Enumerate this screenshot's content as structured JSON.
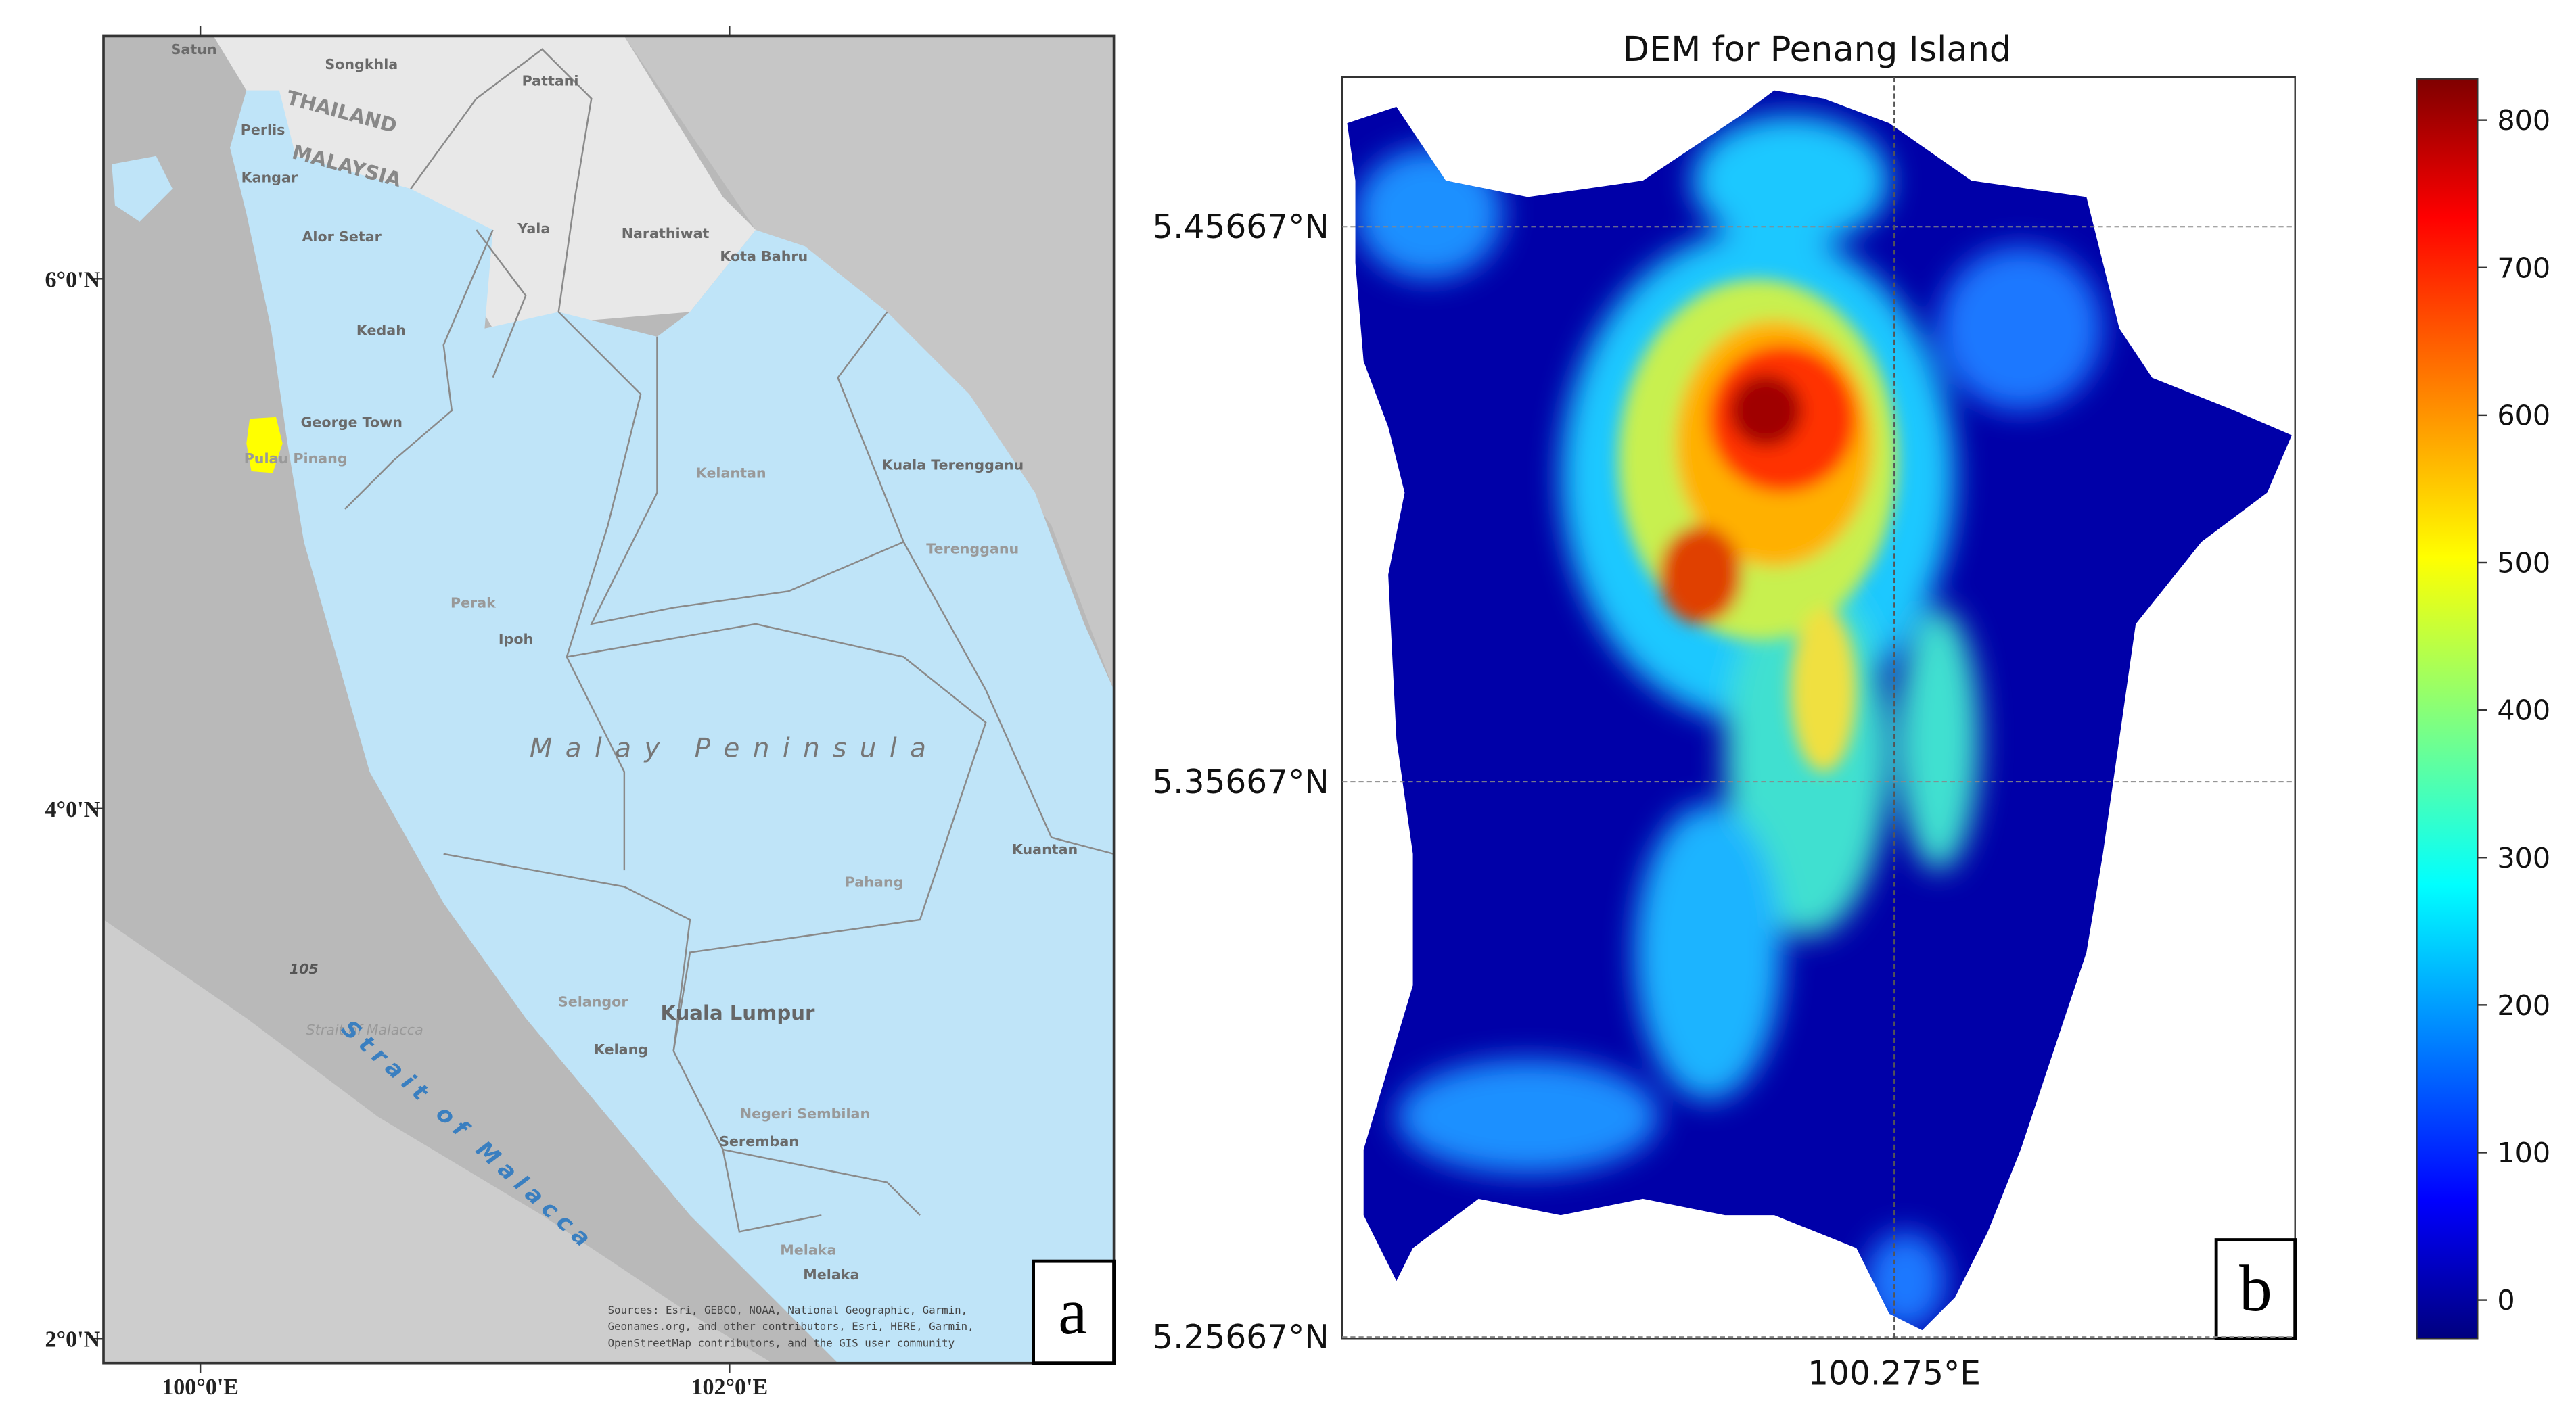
{
  "panel_a": {
    "label": "a",
    "xaxis": {
      "lim": [
        99.634,
        103.453
      ],
      "ticks": [
        {
          "value": 100,
          "label": "100°0'E"
        },
        {
          "value": 102,
          "label": "102°0'E"
        }
      ]
    },
    "yaxis": {
      "lim": [
        1.907,
        6.916
      ],
      "ticks": [
        {
          "value": 2,
          "label": "2°0'N"
        },
        {
          "value": 4,
          "label": "4°0'N"
        },
        {
          "value": 6,
          "label": "6°0'N"
        }
      ]
    },
    "places": [
      "Satun",
      "Songkhla",
      "Pattani",
      "THAILAND",
      "MALAYSIA",
      "Perlis",
      "Kangar",
      "Alor Setar",
      "Kedah",
      "Yala",
      "Narathiwat",
      "Kota Bahru",
      "George Town",
      "Pulau Pinang",
      "Kelantan",
      "Kuala Terengganu",
      "Terengganu",
      "Perak",
      "Ipoh",
      "Malay Peninsula",
      "Kuantan",
      "Pahang",
      "105",
      "Strait of Malacca",
      "Selangor",
      "Kuala Lumpur",
      "Kelang",
      "Negeri Sembilan",
      "Seremban",
      "Melaka",
      "Melaka",
      "Strait of Malacca"
    ],
    "attribution": [
      "Sources: Esri, GEBCO, NOAA, National Geographic, Garmin,",
      "Geonames.org, and other contributors, Esri, HERE, Garmin,",
      "OpenStreetMap contributors, and the GIS user community"
    ]
  },
  "panel_b": {
    "title": "DEM for Penang Island",
    "label": "b",
    "xaxis": {
      "lim": [
        100.1756,
        100.3472
      ],
      "ticks": [
        {
          "value": 100.275,
          "label": "100.275°E"
        }
      ]
    },
    "yaxis": {
      "lim": [
        5.2564,
        5.4836
      ],
      "ticks": [
        {
          "value": 5.25667,
          "label": "5.25667°N"
        },
        {
          "value": 5.35667,
          "label": "5.35667°N"
        },
        {
          "value": 5.45667,
          "label": "5.45667°N"
        }
      ]
    },
    "colorbar": {
      "colormap": "jet",
      "lim": [
        -26,
        828
      ],
      "ticks": [
        0,
        100,
        200,
        300,
        400,
        500,
        600,
        700,
        800
      ]
    }
  }
}
